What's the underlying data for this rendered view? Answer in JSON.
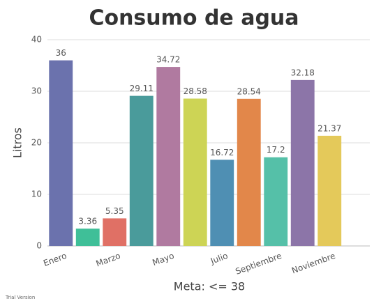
{
  "chart_data": {
    "type": "bar",
    "title": "Consumo de agua",
    "y_label": "Litros",
    "x_label": "Meta: <= 38",
    "footnote": "Trial Version",
    "categories": [
      "Enero",
      null,
      "Marzo",
      null,
      "Mayo",
      null,
      "Julio",
      null,
      "Septiembre",
      null,
      "Noviembre"
    ],
    "values": [
      36,
      3.36,
      5.35,
      29.11,
      34.72,
      28.58,
      16.72,
      28.54,
      17.2,
      32.18,
      21.37
    ],
    "colors": [
      "#6b72ad",
      "#3fbf98",
      "#e07065",
      "#4a9b9b",
      "#b07aa0",
      "#cdd455",
      "#4f8fb3",
      "#e2874a",
      "#55c0a8",
      "#8c75a8",
      "#e4c95a"
    ],
    "ylim": [
      0,
      40
    ],
    "yticks": [
      0,
      10,
      20,
      30,
      40
    ],
    "grid": true
  }
}
